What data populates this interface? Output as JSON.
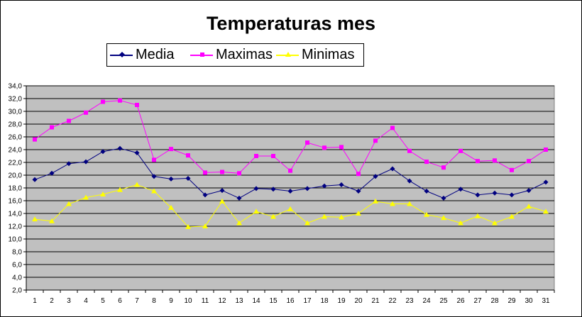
{
  "chart_data": {
    "type": "line",
    "title": "Temperaturas mes",
    "xlabel": "",
    "ylabel": "",
    "ylim": [
      2.0,
      34.0
    ],
    "yticks": [
      "34,0",
      "32,0",
      "30,0",
      "28,0",
      "26,0",
      "24,0",
      "22,0",
      "20,0",
      "18,0",
      "16,0",
      "14,0",
      "12,0",
      "10,0",
      "8,0",
      "6,0",
      "4,0",
      "2,0"
    ],
    "categories": [
      "1",
      "2",
      "3",
      "4",
      "5",
      "6",
      "7",
      "8",
      "9",
      "10",
      "11",
      "12",
      "13",
      "14",
      "15",
      "16",
      "17",
      "18",
      "19",
      "20",
      "21",
      "22",
      "23",
      "24",
      "25",
      "26",
      "27",
      "28",
      "29",
      "30",
      "31"
    ],
    "grid": true,
    "legend_position": "top",
    "plot_background": "#c0c0c0",
    "series": [
      {
        "name": "Media",
        "color": "#000080",
        "marker": "diamond",
        "values": [
          19.3,
          20.3,
          21.8,
          22.1,
          23.7,
          24.2,
          23.5,
          19.8,
          19.4,
          19.5,
          16.9,
          17.6,
          16.4,
          17.9,
          17.8,
          17.5,
          17.9,
          18.3,
          18.5,
          17.5,
          19.8,
          21.0,
          19.1,
          17.5,
          16.4,
          17.8,
          16.9,
          17.2,
          16.9,
          17.6,
          18.9
        ]
      },
      {
        "name": "Maximas",
        "color": "#ff00ff",
        "marker": "square",
        "values": [
          25.6,
          27.5,
          28.5,
          29.8,
          31.5,
          31.7,
          31.0,
          22.4,
          24.1,
          23.1,
          20.4,
          20.5,
          20.3,
          23.0,
          23.0,
          20.7,
          25.1,
          24.3,
          24.4,
          20.2,
          25.4,
          27.4,
          23.8,
          22.1,
          21.2,
          23.8,
          22.2,
          22.3,
          20.8,
          22.2,
          24.0
        ]
      },
      {
        "name": "Minimas",
        "color": "#ffff00",
        "marker": "triangle",
        "values": [
          13.1,
          12.8,
          15.5,
          16.5,
          17.0,
          17.7,
          18.5,
          17.5,
          14.9,
          11.9,
          12.0,
          15.9,
          12.5,
          14.3,
          13.5,
          14.7,
          12.5,
          13.5,
          13.4,
          14.0,
          15.9,
          15.5,
          15.5,
          13.8,
          13.3,
          12.5,
          13.6,
          12.5,
          13.5,
          15.1,
          14.3
        ]
      }
    ]
  }
}
